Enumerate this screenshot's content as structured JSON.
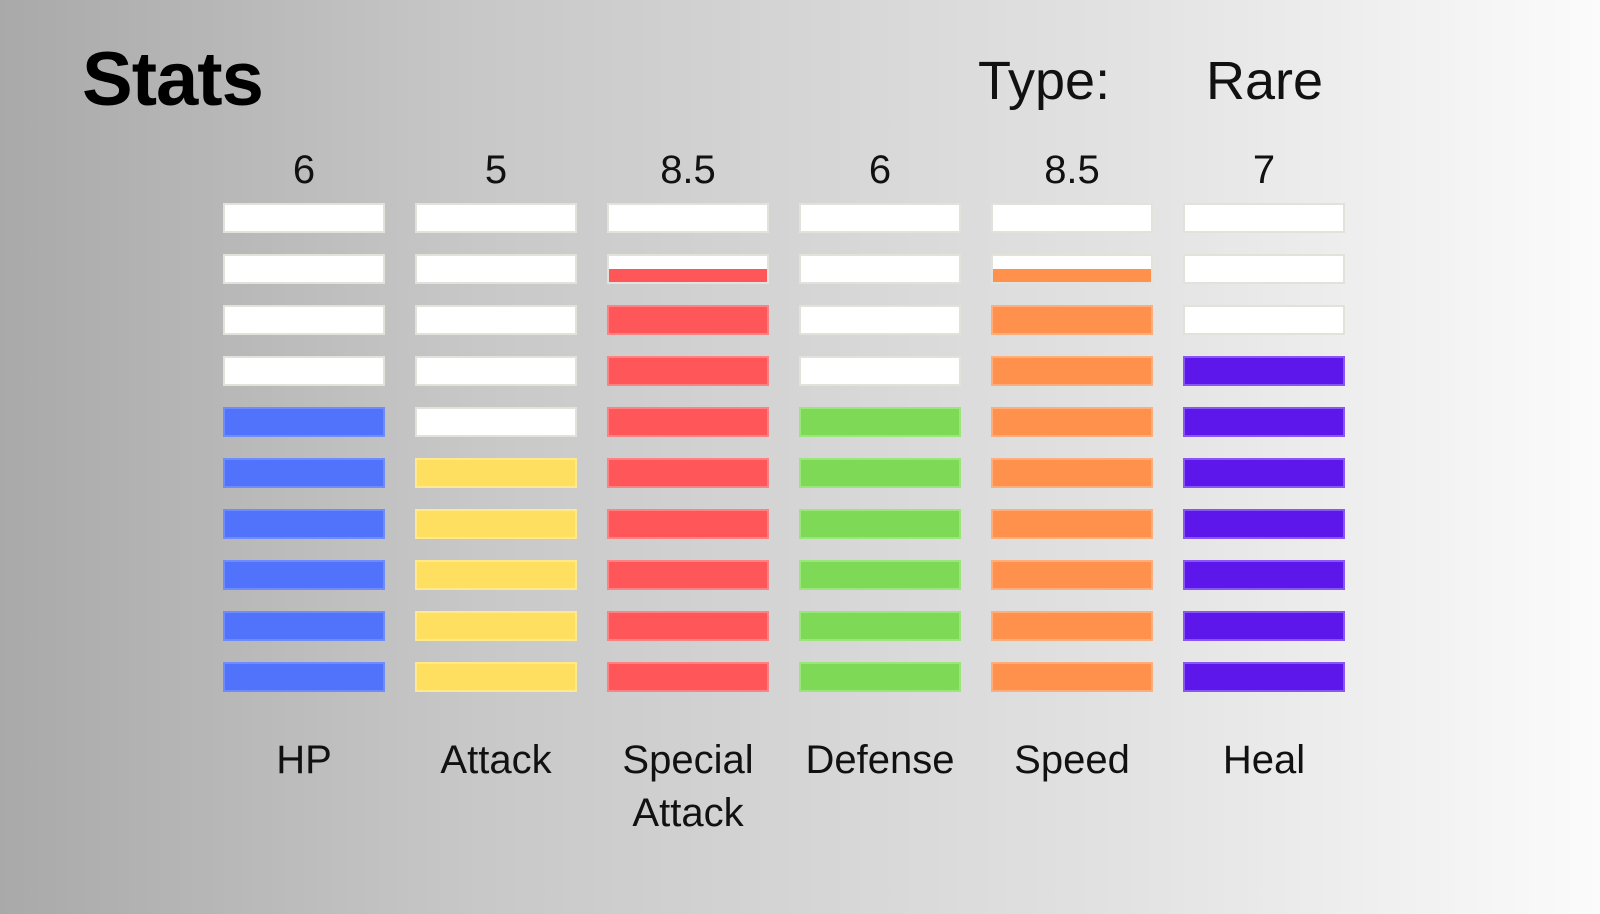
{
  "title": "Stats",
  "type_label": "Type:",
  "type_value": "Rare",
  "max_segments": 10,
  "stats": [
    {
      "name": "HP",
      "value_label": "6",
      "value": 6,
      "color": "#5173fb",
      "border": "#6f8cff"
    },
    {
      "name": "Attack",
      "value_label": "5",
      "value": 5,
      "color": "#ffdf5f",
      "border": "#ffe98a"
    },
    {
      "name": "Special\nAttack",
      "value_label": "8.5",
      "value": 8.5,
      "color": "#ff5659",
      "border": "#ff8183"
    },
    {
      "name": "Defense",
      "value_label": "6",
      "value": 6,
      "color": "#7ed957",
      "border": "#9ae67a"
    },
    {
      "name": "Speed",
      "value_label": "8.5",
      "value": 8.5,
      "color": "#ff914d",
      "border": "#ffad7a"
    },
    {
      "name": "Heal",
      "value_label": "7",
      "value": 7,
      "color": "#5e17eb",
      "border": "#8a55f5"
    }
  ]
}
